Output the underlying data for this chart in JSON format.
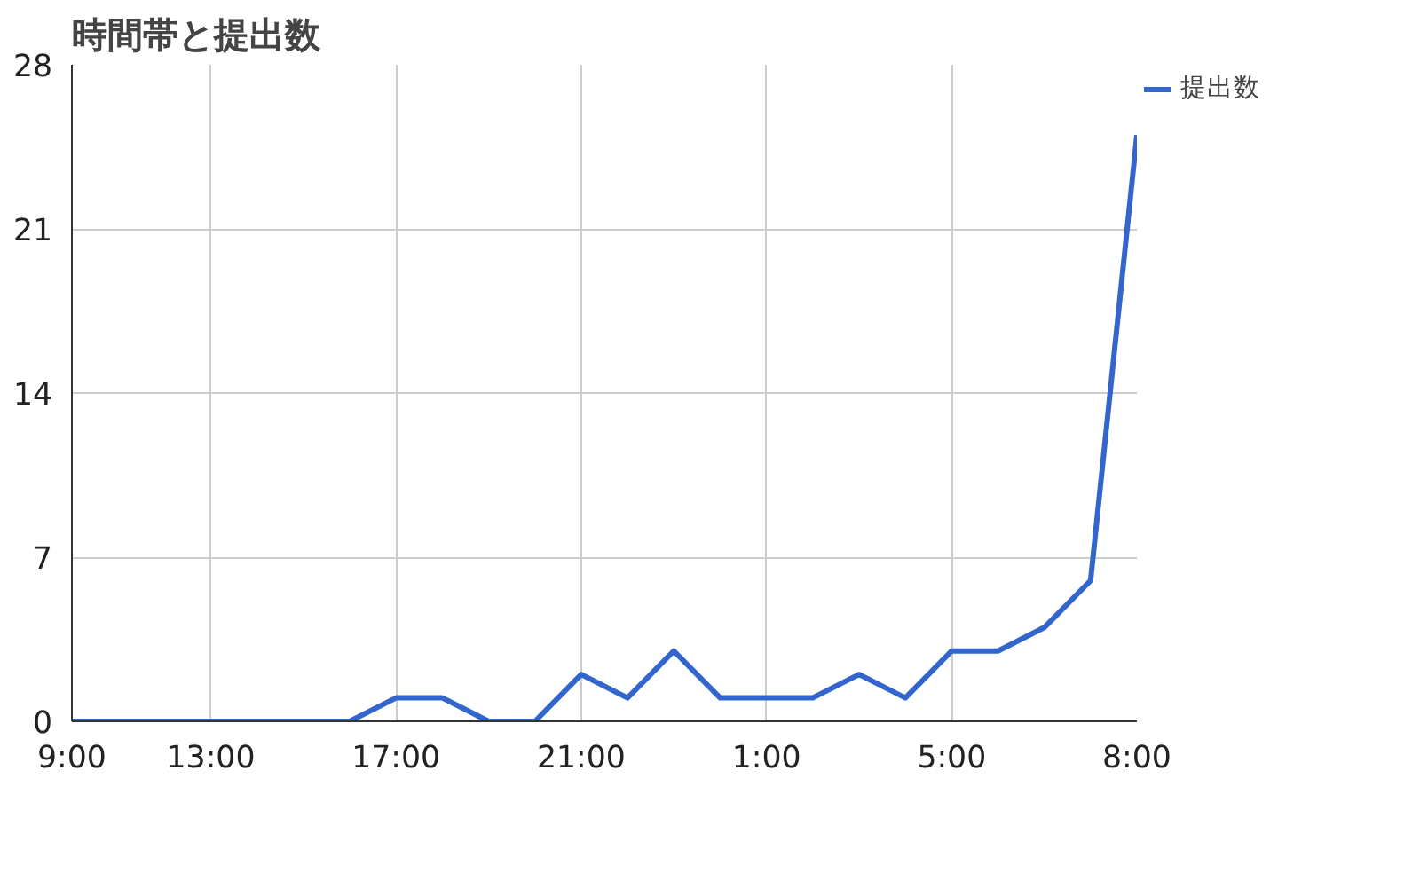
{
  "chart_data": {
    "type": "line",
    "title": "時間帯と提出数",
    "categories": [
      "9:00",
      null,
      null,
      "13:00",
      null,
      null,
      null,
      "17:00",
      null,
      null,
      null,
      "21:00",
      null,
      null,
      null,
      "1:00",
      null,
      null,
      null,
      "5:00",
      null,
      null,
      null,
      "8:00"
    ],
    "series": [
      {
        "name": "提出数",
        "color": "#3366cc",
        "values": [
          0,
          0,
          0,
          0,
          0,
          0,
          0,
          1,
          1,
          0,
          0,
          2,
          1,
          3,
          1,
          1,
          1,
          2,
          1,
          3,
          3,
          4,
          6,
          25
        ]
      }
    ],
    "ylim": [
      0,
      28
    ],
    "yticks": [
      0,
      7,
      14,
      21,
      28
    ],
    "grid": true,
    "legend": "right"
  }
}
